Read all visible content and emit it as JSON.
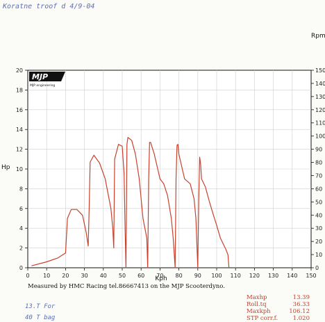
{
  "annotations": {
    "handwritten_top": "Koratne troof d 4/9-04",
    "handwritten_bottom_1": "13.T For",
    "handwritten_bottom_2": "40 T bag"
  },
  "logo": {
    "brand": "MJP",
    "subtitle": "MJP engineering"
  },
  "footer_text": "Measured by HMC Racing tel.86667413 on the MJP Scooterdyno.",
  "stats": [
    {
      "label": "Maxhp",
      "value": "13.39"
    },
    {
      "label": "Roll.tq",
      "value": "36.33"
    },
    {
      "label": "Maxkph",
      "value": "106.12"
    },
    {
      "label": "STP corr.f.",
      "value": "1.020"
    }
  ],
  "colors": {
    "curve": "#c8412c",
    "axis": "#111111",
    "grid": "#cfcfcf",
    "stats": "#b8432d",
    "handwriting": "#5a6fb8"
  },
  "chart_data": {
    "type": "line",
    "xlabel": "Kph",
    "ylabel": "Hp",
    "y2label": "Rpm",
    "xlim": [
      0,
      150
    ],
    "ylim": [
      0,
      20
    ],
    "y2lim": [
      0,
      150
    ],
    "x_ticks": [
      "0",
      "10",
      "20",
      "30",
      "40",
      "50",
      "60",
      "70",
      "80",
      "90",
      "100",
      "110",
      "120",
      "130",
      "140",
      "150"
    ],
    "y_ticks": [
      "0",
      "2",
      "4",
      "6",
      "8",
      "10",
      "12",
      "14",
      "16",
      "18",
      "20"
    ],
    "y2_ticks": [
      "0",
      "10",
      "20",
      "30",
      "40",
      "50",
      "60",
      "70",
      "80",
      "90",
      "100",
      "110",
      "120",
      "130",
      "140",
      "150"
    ],
    "grid": true,
    "series": [
      {
        "x": [
          2,
          10,
          16,
          20,
          21,
          23,
          26,
          29,
          31,
          32,
          32.5,
          33,
          35,
          38,
          41,
          44,
          45,
          45.5,
          46,
          48,
          50,
          51,
          51.5,
          52,
          52.5,
          53,
          55,
          57,
          59,
          61,
          63,
          63.5,
          64,
          64.5,
          65,
          67,
          70,
          72,
          74,
          76,
          77,
          78,
          78.5,
          79,
          79.5,
          80,
          83,
          86,
          88,
          89,
          90,
          90.5,
          91,
          91.5,
          92,
          94,
          96,
          98,
          100,
          102,
          104,
          105,
          106,
          106.5
        ],
        "y": [
          0.2,
          0.6,
          1.0,
          1.5,
          5.0,
          5.9,
          5.9,
          5.3,
          3.5,
          2.2,
          6.0,
          10.7,
          11.4,
          10.6,
          9.0,
          6.0,
          4.0,
          2.0,
          11.0,
          12.5,
          12.3,
          9.5,
          4.0,
          0.0,
          12.5,
          13.2,
          12.9,
          11.5,
          9.0,
          5.0,
          3.0,
          0.0,
          9.0,
          12.7,
          12.7,
          11.5,
          9.0,
          8.5,
          7.3,
          5.0,
          3.0,
          0.0,
          9.0,
          12.4,
          12.5,
          11.5,
          9.0,
          8.5,
          7.0,
          5.0,
          0.0,
          7.0,
          11.2,
          10.5,
          9.0,
          8.2,
          6.8,
          5.5,
          4.3,
          3.0,
          2.2,
          1.8,
          1.3,
          0.0
        ]
      }
    ]
  }
}
